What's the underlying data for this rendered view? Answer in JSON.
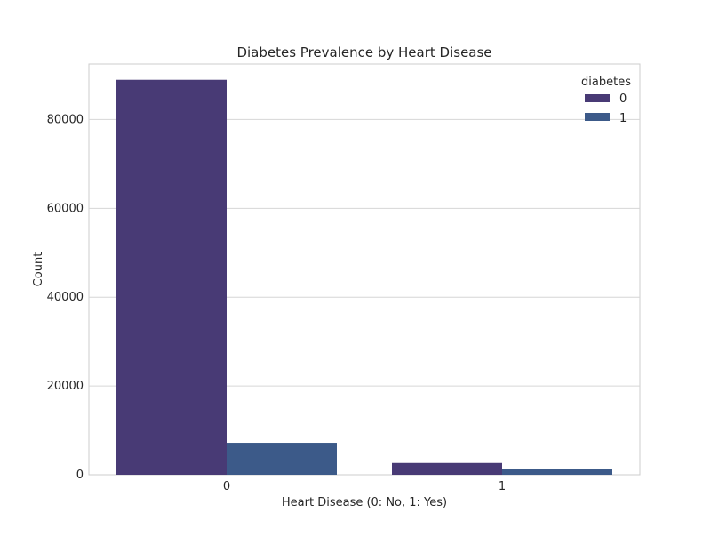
{
  "chart_data": {
    "type": "bar",
    "title": "Diabetes Prevalence by Heart Disease",
    "xlabel": "Heart Disease (0: No, 1: Yes)",
    "ylabel": "Count",
    "categories": [
      "0",
      "1"
    ],
    "series": [
      {
        "name": "0",
        "values": [
          88950,
          2650
        ],
        "color": "#483a75"
      },
      {
        "name": "1",
        "values": [
          7200,
          1200
        ],
        "color": "#3c5a89"
      }
    ],
    "ylim": [
      0,
      92500
    ],
    "yticks": [
      0,
      20000,
      40000,
      60000,
      80000
    ],
    "ytick_labels": [
      "0",
      "20000",
      "40000",
      "60000",
      "80000"
    ],
    "grid": true,
    "legend": {
      "title": "diabetes",
      "placement": "top-right",
      "items": [
        "0",
        "1"
      ]
    }
  }
}
